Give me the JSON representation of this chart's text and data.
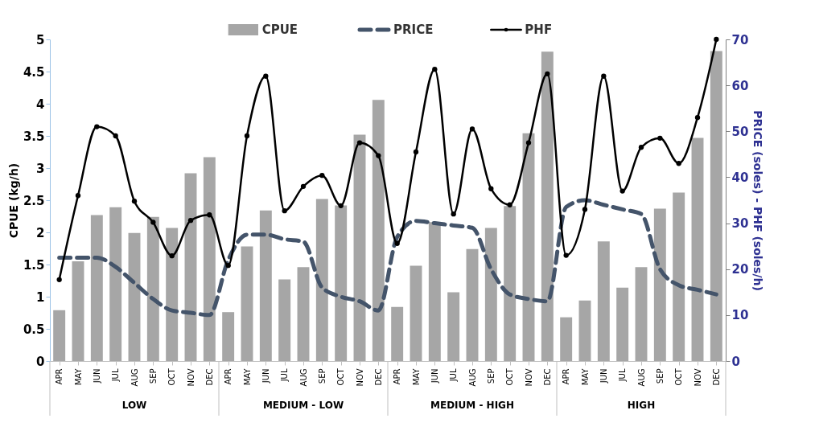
{
  "chart_data": {
    "type": "bar",
    "ylabel": "CPUE (kg/h)",
    "y2label": "PRICE  (soles)  -  PHF (soles/h)",
    "categories": [
      "APR",
      "MAY",
      "JUN",
      "JUL",
      "AUG",
      "SEP",
      "OCT",
      "NOV",
      "DEC",
      "APR",
      "MAY",
      "JUN",
      "JUL",
      "AUG",
      "SEP",
      "OCT",
      "NOV",
      "DEC",
      "APR",
      "MAY",
      "JUN",
      "JUL",
      "AUG",
      "SEP",
      "OCT",
      "NOV",
      "DEC",
      "APR",
      "MAY",
      "JUN",
      "JUL",
      "AUG",
      "SEP",
      "OCT",
      "NOV",
      "DEC"
    ],
    "annotations": [
      "LOW",
      "MEDIUM - LOW",
      "MEDIUM - HIGH",
      "HIGH"
    ],
    "series": [
      {
        "name": "CPUE",
        "type": "bar",
        "color": "#a6a6a6",
        "values": [
          0.79,
          1.55,
          2.27,
          2.39,
          1.99,
          2.24,
          2.07,
          2.92,
          3.17,
          0.76,
          1.78,
          2.34,
          1.27,
          1.46,
          2.52,
          2.42,
          3.52,
          4.06,
          0.84,
          1.48,
          2.16,
          1.07,
          1.74,
          2.07,
          2.41,
          3.54,
          4.81,
          0.68,
          0.94,
          1.86,
          1.14,
          1.46,
          2.37,
          2.62,
          3.47,
          4.82
        ]
      },
      {
        "name": "PRICE",
        "type": "line",
        "axis": "y2",
        "color": "#44546a",
        "line_style": "dashed",
        "marker": "none",
        "values": [
          22.5,
          22.5,
          22.5,
          20.5,
          17,
          13.5,
          11,
          10.5,
          10,
          22,
          27.5,
          27.5,
          26.5,
          26,
          16,
          14,
          13,
          11,
          27,
          30.5,
          30,
          29.5,
          29,
          20,
          14.5,
          13.5,
          13,
          33.5,
          35,
          34,
          33,
          32,
          20,
          16.5,
          15.5,
          14.5
        ]
      },
      {
        "name": "PHF",
        "type": "line",
        "axis": "y2",
        "color": "#000000",
        "line_style": "solid",
        "marker": "circle",
        "values": [
          17.7,
          36,
          51,
          49,
          34.8,
          30.2,
          22.9,
          30.6,
          31.8,
          20.8,
          49,
          62,
          32.7,
          38,
          40.4,
          33.8,
          47.5,
          44.7,
          25.6,
          45.5,
          63.5,
          32,
          50.5,
          37.5,
          34,
          47.5,
          62.5,
          23,
          33,
          62,
          37,
          46.5,
          48.5,
          43,
          53,
          70
        ]
      }
    ],
    "ylim": [
      0,
      5
    ],
    "yticks": [
      0,
      0.5,
      1,
      1.5,
      2,
      2.5,
      3,
      3.5,
      4,
      4.5,
      5
    ],
    "y2lim": [
      0,
      70
    ],
    "y2ticks": [
      0,
      10,
      20,
      30,
      40,
      50,
      60,
      70
    ],
    "legend": "top"
  }
}
